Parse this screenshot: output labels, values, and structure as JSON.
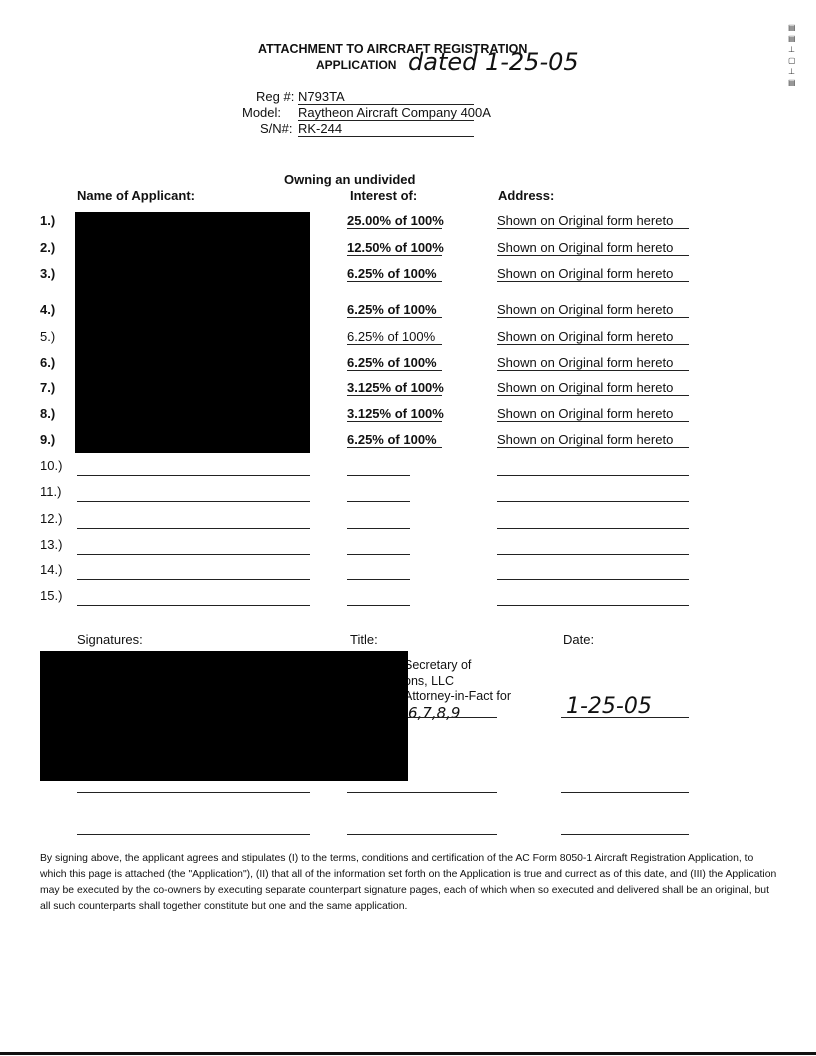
{
  "header": {
    "title_line1": "ATTACHMENT TO AIRCRAFT REGISTRATION",
    "title_line2": "APPLICATION",
    "handwritten_date": "dated 1-25-05"
  },
  "aircraft": {
    "reg_label": "Reg #:",
    "reg_value": "N793TA",
    "model_label": "Model:",
    "model_value": "Raytheon Aircraft Company 400A",
    "sn_label": "S/N#:",
    "sn_value": "RK-244"
  },
  "columns": {
    "name": "Name of Applicant:",
    "interest_line1": "Owning an undivided",
    "interest_line2": "Interest of:",
    "address": "Address:"
  },
  "rows": [
    {
      "num": "1.)",
      "interest": "25.00% of 100%",
      "address": "Shown on Original form hereto"
    },
    {
      "num": "2.)",
      "interest": "12.50% of 100%",
      "address": "Shown on Original form hereto"
    },
    {
      "num": "3.)",
      "interest": "6.25% of 100%",
      "address": "Shown on Original form hereto"
    },
    {
      "num": "4.)",
      "interest": "6.25% of 100%",
      "address": "Shown on Original form hereto"
    },
    {
      "num": "5.)",
      "interest": "6.25% of 100%",
      "address": "Shown on Original form hereto"
    },
    {
      "num": "6.)",
      "interest": "6.25% of 100%",
      "address": "Shown on Original form hereto"
    },
    {
      "num": "7.)",
      "interest": "3.125% of 100%",
      "address": "Shown on Original form hereto"
    },
    {
      "num": "8.)",
      "interest": "3.125% of 100%",
      "address": "Shown on Original form hereto"
    },
    {
      "num": "9.)",
      "interest": "6.25% of 100%",
      "address": "Shown on Original form hereto"
    },
    {
      "num": "10.)"
    },
    {
      "num": "11.)"
    },
    {
      "num": "12.)"
    },
    {
      "num": "13.)"
    },
    {
      "num": "14.)"
    },
    {
      "num": "15.)"
    }
  ],
  "signatures": {
    "signatures_label": "Signatures:",
    "title_label": "Title:",
    "date_label": "Date:",
    "title_line1": "Secretary of",
    "title_line2": "ons, LLC",
    "title_line3": "Attorney-in-Fact for",
    "title_handwritten": "6,7,8,9",
    "date_handwritten": "1-25-05"
  },
  "footer_text": "By signing above, the applicant agrees and stipulates (I) to the terms, conditions and certification of the AC Form 8050-1 Aircraft Registration Application, to which this page is attached (the \"Application\"), (II) that all of the information set forth on the Application is true and currect as of this date, and (III) the Application may be executed by the co-owners by executing separate counterpart signature pages, each of which when so executed and delivered shall be an original, but all such counterparts shall together constitute but one and the same application."
}
